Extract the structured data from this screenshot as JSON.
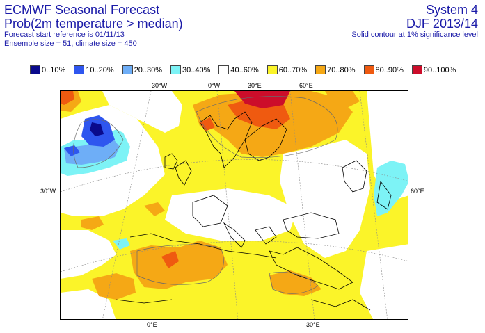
{
  "header": {
    "title": "ECMWF Seasonal Forecast",
    "subtitle": "Prob(2m temperature > median)",
    "start_ref": "Forecast start reference is 01/11/13",
    "ensemble": "Ensemble size = 51, climate size = 450",
    "system": "System 4",
    "season": "DJF 2013/14",
    "contour_note": "Solid contour at 1% significance level"
  },
  "legend": [
    {
      "label": "0..10%",
      "color": "#0a0a8c"
    },
    {
      "label": "10..20%",
      "color": "#2f56ef"
    },
    {
      "label": "20..30%",
      "color": "#6eaef7"
    },
    {
      "label": "30..40%",
      "color": "#7df3f6"
    },
    {
      "label": "40..60%",
      "color": "#ffffff"
    },
    {
      "label": "60..70%",
      "color": "#fbf429"
    },
    {
      "label": "70..80%",
      "color": "#f5a815"
    },
    {
      "label": "80..90%",
      "color": "#ef5a10"
    },
    {
      "label": "90..100%",
      "color": "#cc0d2a"
    }
  ],
  "graticule": {
    "top": [
      "30°W",
      "0°W",
      "30°E",
      "60°E"
    ],
    "left": [
      "30°W"
    ],
    "right": [
      "60°E"
    ],
    "bottom": [
      "0°E",
      "30°E"
    ]
  }
}
